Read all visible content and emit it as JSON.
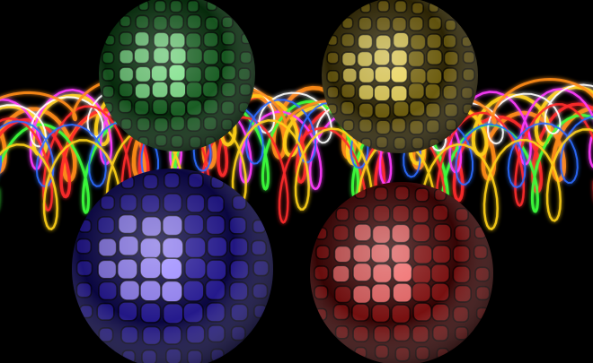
{
  "image": {
    "background": "#000000",
    "light_trail_colors": [
      "#ff2a2a",
      "#ff8c1a",
      "#ffd21a",
      "#3cff3c",
      "#ffffff",
      "#ff3cff",
      "#2a6bff"
    ],
    "spheres": [
      {
        "name": "green",
        "base": "#1f6b2a",
        "light": "#7fe08a",
        "dark": "#062a0b"
      },
      {
        "name": "yellow",
        "base": "#7d6a12",
        "light": "#e8d35a",
        "dark": "#2c2404"
      },
      {
        "name": "blue",
        "base": "#2c1fa0",
        "light": "#9d8cff",
        "dark": "#0a0640"
      },
      {
        "name": "red",
        "base": "#8a1414",
        "light": "#f06a6a",
        "dark": "#350404"
      }
    ]
  }
}
